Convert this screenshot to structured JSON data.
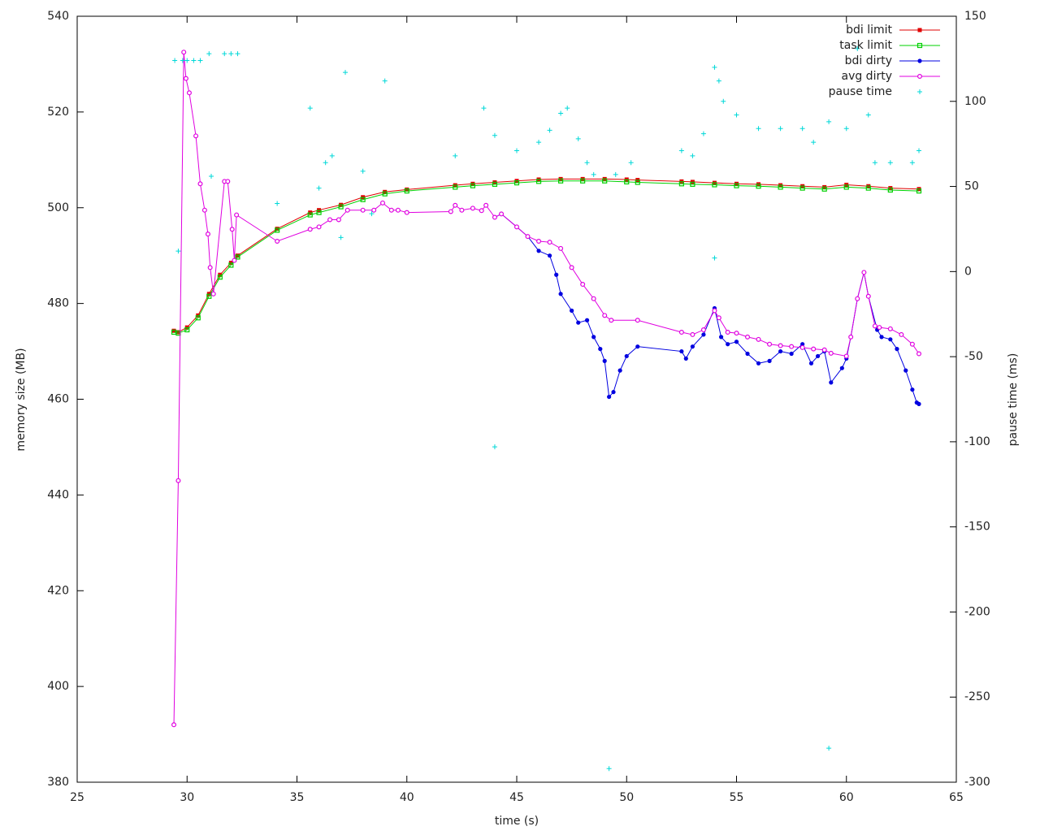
{
  "chart_data": {
    "type": "line",
    "x_label": "time (s)",
    "y_label": "memory size (MB)",
    "y2_label": "pause time (ms)",
    "xlim": [
      25,
      65
    ],
    "xticks": [
      25,
      30,
      35,
      40,
      45,
      50,
      55,
      60,
      65
    ],
    "ylim": [
      380,
      540
    ],
    "yticks": [
      380,
      400,
      420,
      440,
      460,
      480,
      500,
      520,
      540
    ],
    "y2lim": [
      -300,
      150
    ],
    "y2ticks": [
      -300,
      -250,
      -200,
      -150,
      -100,
      -50,
      0,
      50,
      100,
      150
    ],
    "grid": false,
    "legend": "top-right",
    "series": [
      {
        "name": "bdi limit",
        "color": "#e00000",
        "marker": "square",
        "lines": true,
        "x": [
          29.4,
          29.6,
          30,
          30.5,
          31,
          31.5,
          32,
          32.3,
          34.1,
          35.6,
          36,
          37,
          38,
          39,
          40,
          42.2,
          43,
          44,
          45,
          46,
          47,
          48,
          49,
          50,
          50.5,
          52.5,
          53,
          54,
          55,
          56,
          57,
          58,
          59,
          60,
          61,
          62,
          63.3
        ],
        "values": [
          474.3,
          474,
          475,
          477.5,
          482,
          486,
          488.5,
          490,
          495.6,
          499,
          499.5,
          500.6,
          502.2,
          503.3,
          503.8,
          504.7,
          505,
          505.3,
          505.6,
          505.9,
          506,
          506,
          506,
          505.9,
          505.8,
          505.5,
          505.4,
          505.2,
          505,
          504.9,
          504.7,
          504.5,
          504.3,
          504.8,
          504.5,
          504.1,
          503.9
        ]
      },
      {
        "name": "task limit",
        "color": "#00d000",
        "marker": "open-square",
        "lines": true,
        "x": [
          29.4,
          29.6,
          30,
          30.5,
          31,
          31.5,
          32,
          32.3,
          34.1,
          35.6,
          36,
          37,
          38,
          39,
          40,
          42.2,
          43,
          44,
          45,
          46,
          47,
          48,
          49,
          50,
          50.5,
          52.5,
          53,
          54,
          55,
          56,
          57,
          58,
          59,
          60,
          61,
          62,
          63.3
        ],
        "values": [
          474,
          473.8,
          474.5,
          477,
          481.5,
          485.5,
          488,
          489.7,
          495.3,
          498.5,
          499,
          500.2,
          501.7,
          502.9,
          503.5,
          504.3,
          504.6,
          504.9,
          505.2,
          505.5,
          505.6,
          505.6,
          505.6,
          505.4,
          505.3,
          505,
          504.9,
          504.8,
          504.6,
          504.5,
          504.3,
          504.1,
          503.9,
          504.3,
          504.1,
          503.7,
          503.5
        ]
      },
      {
        "name": "bdi dirty",
        "color": "#0000e0",
        "marker": "circle",
        "lines": true,
        "x": [
          44,
          44.3,
          45,
          45.5,
          46,
          46.5,
          46.8,
          47,
          47.5,
          47.8,
          48.2,
          48.5,
          48.8,
          49,
          49.2,
          49.4,
          49.7,
          50,
          50.5,
          52.5,
          52.7,
          53,
          53.5,
          54,
          54.3,
          54.6,
          55,
          55.5,
          56,
          56.5,
          57,
          57.5,
          58,
          58.4,
          58.7,
          59,
          59.3,
          59.8,
          60,
          60.2,
          60.5,
          60.8,
          61,
          61.4,
          61.6,
          62,
          62.3,
          62.7,
          63,
          63.2,
          63.3
        ],
        "values": [
          498,
          498.7,
          496,
          494,
          491,
          490,
          486,
          482,
          478.5,
          476,
          476.5,
          473,
          470.5,
          468,
          460.5,
          461.5,
          466,
          469,
          471,
          470,
          468.5,
          471,
          473.5,
          479,
          473,
          471.5,
          472,
          469.5,
          467.5,
          468,
          470,
          469.5,
          471.5,
          467.5,
          469,
          470,
          463.5,
          466.5,
          468.5,
          473,
          481,
          486.5,
          481.5,
          474.5,
          473,
          472.5,
          470.5,
          466,
          462,
          459.3,
          459
        ]
      },
      {
        "name": "avg dirty",
        "color": "#e000e0",
        "marker": "open-circle",
        "lines": true,
        "x": [
          29.4,
          29.6,
          29.85,
          29.95,
          30.1,
          30.4,
          30.6,
          30.8,
          30.95,
          31.05,
          31.2,
          31.7,
          31.85,
          32.05,
          32.15,
          32.25,
          34.1,
          35.6,
          36,
          36.5,
          36.9,
          37.3,
          38,
          38.5,
          38.9,
          39.3,
          39.6,
          40,
          42,
          42.2,
          42.5,
          43,
          43.4,
          43.6,
          44,
          44.3,
          45,
          45.5,
          46,
          46.5,
          47,
          47.5,
          48,
          48.5,
          49,
          49.3,
          50.5,
          52.5,
          53,
          53.5,
          54,
          54.2,
          54.6,
          55,
          55.5,
          56,
          56.5,
          57,
          57.5,
          58,
          58.5,
          59,
          59.3,
          60,
          60.2,
          60.5,
          60.8,
          61,
          61.3,
          61.5,
          62,
          62.5,
          63,
          63.3
        ],
        "values": [
          392,
          443,
          532.5,
          527,
          524,
          515,
          505,
          499.5,
          494.5,
          487.5,
          482,
          505.5,
          505.5,
          495.5,
          489,
          498.5,
          493,
          495.5,
          496,
          497.5,
          497.5,
          499.5,
          499.5,
          499.5,
          501,
          499.5,
          499.5,
          499,
          499.2,
          500.5,
          499.5,
          499.9,
          499.4,
          500.5,
          498,
          498.7,
          496,
          494,
          493,
          492.8,
          491.5,
          487.5,
          484,
          481,
          477.5,
          476.5,
          476.5,
          474,
          473.5,
          474.5,
          478.5,
          477,
          474,
          473.8,
          473,
          472.5,
          471.5,
          471.2,
          471,
          470.8,
          470.5,
          470.3,
          469.6,
          469,
          473,
          481,
          486.5,
          481.5,
          475.3,
          475,
          474.7,
          473.5,
          471.5,
          469.5
        ]
      },
      {
        "name": "pause time",
        "color": "#00d8d8",
        "marker": "plus",
        "lines": false,
        "axis": "y2",
        "x": [
          29.44,
          29.6,
          29.8,
          30,
          30.3,
          30.6,
          31,
          31.1,
          31.7,
          32,
          32.3,
          34.1,
          35.6,
          36,
          36.3,
          36.6,
          37,
          37.2,
          38,
          38.4,
          39,
          42.2,
          43.5,
          44,
          44,
          45,
          46,
          46.5,
          47,
          47.3,
          47.8,
          48.2,
          48.5,
          49.2,
          49.5,
          50.2,
          52.5,
          53,
          53.5,
          54,
          54,
          54.2,
          54.4,
          55,
          56,
          57,
          58,
          58.5,
          59.2,
          59.2,
          60,
          60.5,
          61,
          61.3,
          62,
          63,
          63.3
        ],
        "values": [
          124,
          12,
          124,
          124,
          124,
          124,
          128,
          56,
          128,
          128,
          128,
          40,
          96,
          49,
          64,
          68,
          20,
          117,
          59,
          34,
          112,
          68,
          96,
          80,
          -103,
          71,
          76,
          83,
          93,
          96,
          78,
          64,
          57,
          -292,
          57,
          64,
          71,
          68,
          81,
          120,
          8,
          112,
          100,
          92,
          84,
          84,
          84,
          76,
          -280,
          88,
          84,
          131,
          92,
          64,
          64,
          64,
          71
        ]
      }
    ]
  }
}
